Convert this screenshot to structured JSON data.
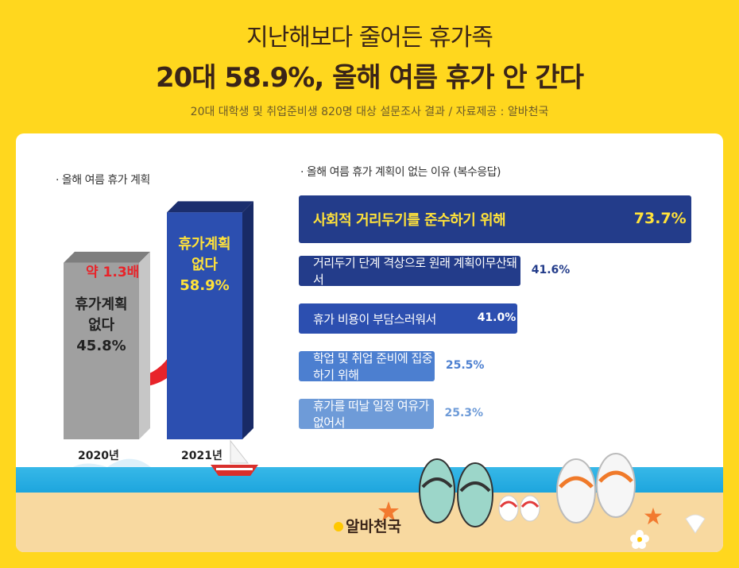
{
  "header": {
    "title_line1": "지난해보다 줄어든 휴가족",
    "title_line2": "20대 58.9%, 올해 여름 휴가 안 간다",
    "subtitle": "20대 대학생 및 취업준비생 820명 대상 설문조사 결과 / 자료제공 : 알바천국"
  },
  "left_section_label": "·  올해 여름 휴가 계획",
  "right_section_label": "·  올해 여름 휴가 계획이 없는 이유 (복수응답)",
  "arrow_label": "약 1.3배",
  "logo_text": "알바천국",
  "colors": {
    "background": "#FFD71E",
    "bar_dark": "#233C8A",
    "bar_mid": "#2C4FB0",
    "bar_light": "#4C7FD0",
    "bar_lighter": "#6E9BD8",
    "gray_bar": "#A0A0A0",
    "arrow": "#E8242A",
    "pct_text": "#FFE23A"
  },
  "chart_data": [
    {
      "type": "bar",
      "title": "올해 여름 휴가 계획",
      "categories": [
        "2020년",
        "2021년"
      ],
      "series": [
        {
          "name": "휴가계획 없다",
          "values": [
            45.8,
            58.9
          ]
        }
      ],
      "bar_labels": [
        {
          "line1": "휴가계획",
          "line2": "없다",
          "value": "45.8%"
        },
        {
          "line1": "휴가계획",
          "line2": "없다",
          "value": "58.9%"
        }
      ],
      "ylim": [
        0,
        70
      ]
    },
    {
      "type": "bar",
      "orientation": "horizontal",
      "title": "올해 여름 휴가 계획이 없는 이유 (복수응답)",
      "categories": [
        "사회적 거리두기를 준수하기 위해",
        "거리두기 단계 격상으로 원래 계획이무산돼서",
        "휴가 비용이 부담스러워서",
        "학업 및 취업 준비에 집중하기 위해",
        "휴가를 떠날 일정 여유가 없어서"
      ],
      "values": [
        73.7,
        41.6,
        41.0,
        25.5,
        25.3
      ],
      "value_labels": [
        "73.7%",
        "41.6%",
        "41.0%",
        "25.5%",
        "25.3%"
      ]
    }
  ]
}
